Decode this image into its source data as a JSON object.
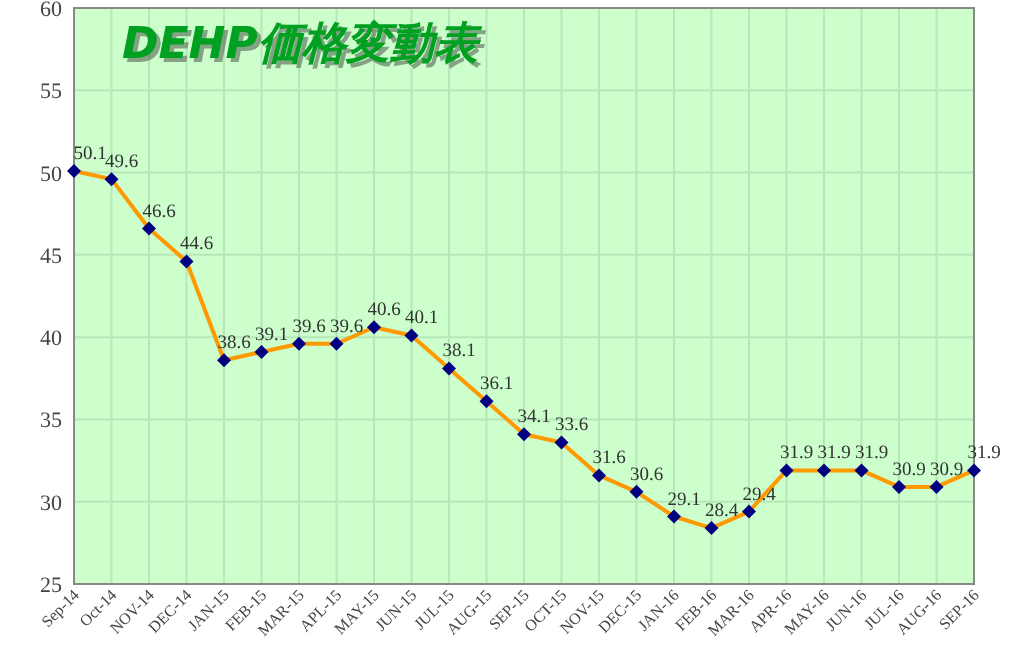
{
  "chart_data": {
    "type": "line",
    "title": "DEHP価格変動表",
    "categories": [
      "Sep-14",
      "Oct-14",
      "NOV-14",
      "DEC-14",
      "JAN-15",
      "FEB-15",
      "MAR-15",
      "APL-15",
      "MAY-15",
      "JUN-15",
      "JUL-15",
      "AUG-15",
      "SEP-15",
      "OCT-15",
      "NOV-15",
      "DEC-15",
      "JAN-16",
      "FEB-16",
      "MAR-16",
      "APR-16",
      "MAY-16",
      "JUN-16",
      "JUL-16",
      "AUG-16",
      "SEP-16"
    ],
    "series": [
      {
        "color": "#ff9900",
        "values": [
          50.1,
          49.6,
          46.6,
          44.6,
          38.6,
          39.1,
          39.6,
          39.6,
          40.6,
          40.1,
          38.1,
          36.1,
          34.1,
          33.6,
          31.6,
          30.6,
          29.1,
          28.4,
          29.4,
          31.9,
          31.9,
          31.9,
          30.9,
          30.9,
          31.9
        ]
      }
    ],
    "ylim": [
      25,
      60
    ],
    "yticks": [
      25,
      30,
      35,
      40,
      45,
      50,
      55,
      60
    ],
    "grid": true,
    "marker": "diamond",
    "data_labels": true
  }
}
